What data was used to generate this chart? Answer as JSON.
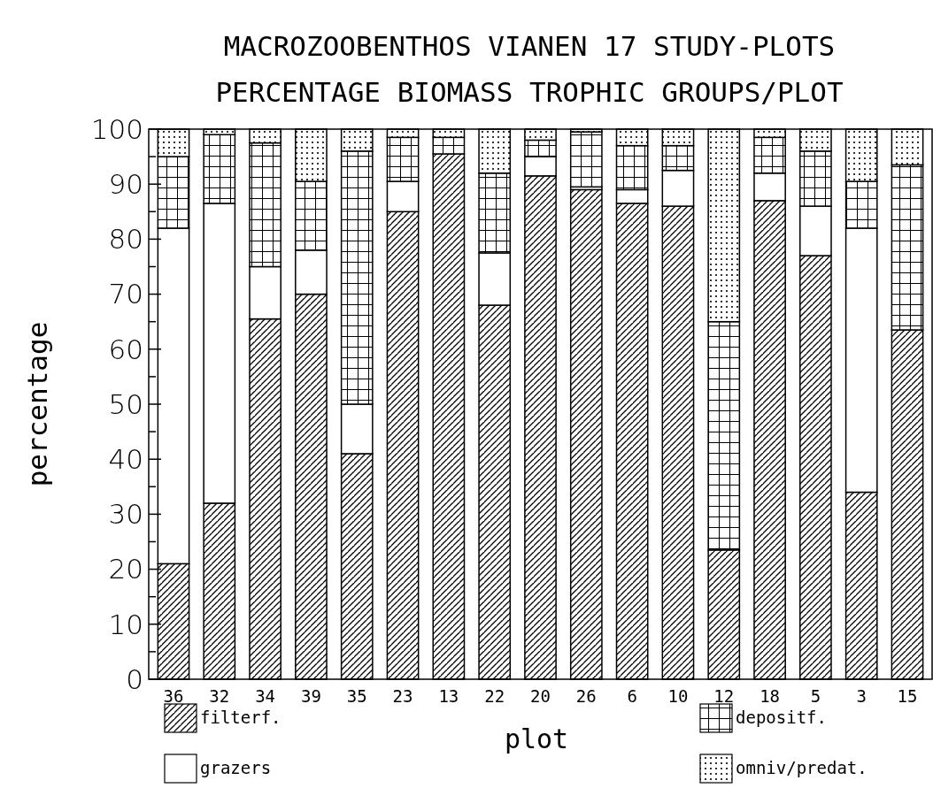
{
  "chart_data": {
    "type": "bar",
    "stacked": true,
    "title": "MACROZOOBENTHOS VIANEN 17 STUDY-PLOTS",
    "subtitle": "PERCENTAGE BIOMASS TROPHIC GROUPS/PLOT",
    "xlabel": "plot",
    "ylabel": "percentage",
    "categories": [
      "36",
      "32",
      "34",
      "39",
      "35",
      "23",
      "13",
      "22",
      "20",
      "26",
      "6",
      "10",
      "12",
      "18",
      "5",
      "3",
      "15"
    ],
    "series": [
      {
        "name": "filterf.",
        "color": "#000000",
        "values": [
          21,
          32,
          65.5,
          70,
          41,
          85,
          95.5,
          68,
          91.5,
          89,
          86.5,
          86,
          23.5,
          87,
          77,
          34,
          63.5
        ]
      },
      {
        "name": "grazers",
        "color": "#000000",
        "values": [
          61,
          54.5,
          9.5,
          8,
          9,
          5.5,
          0,
          9.5,
          3.5,
          0.5,
          2.5,
          6.5,
          0,
          5,
          9,
          48,
          0
        ]
      },
      {
        "name": "depositf.",
        "color": "#000000",
        "values": [
          13,
          12.5,
          22.5,
          12.5,
          46,
          8,
          3,
          14.5,
          3,
          10,
          8,
          4.5,
          41.5,
          6.5,
          10,
          8.5,
          30
        ]
      },
      {
        "name": "omniv/predat.",
        "color": "#000000",
        "values": [
          5,
          1,
          2.5,
          9.5,
          4,
          1.5,
          1.5,
          8,
          2,
          0.5,
          3,
          3,
          35,
          1.5,
          4,
          9.5,
          6.5
        ]
      }
    ],
    "ylim": [
      0,
      100
    ],
    "yticks": [
      0,
      {
        "value": 5,
        "label": null
      },
      10,
      {
        "value": 15,
        "label": null
      },
      20,
      {
        "value": 25,
        "label": null
      },
      30,
      {
        "value": 35,
        "label": null
      },
      40,
      {
        "value": 45,
        "label": null
      },
      50,
      {
        "value": 55,
        "label": null
      },
      60,
      {
        "value": 65,
        "label": null
      },
      70,
      {
        "value": 75,
        "label": null
      },
      80,
      {
        "value": 85,
        "label": null
      },
      90,
      {
        "value": 95,
        "label": null
      },
      100
    ],
    "legend": "bottom",
    "grid": false
  }
}
